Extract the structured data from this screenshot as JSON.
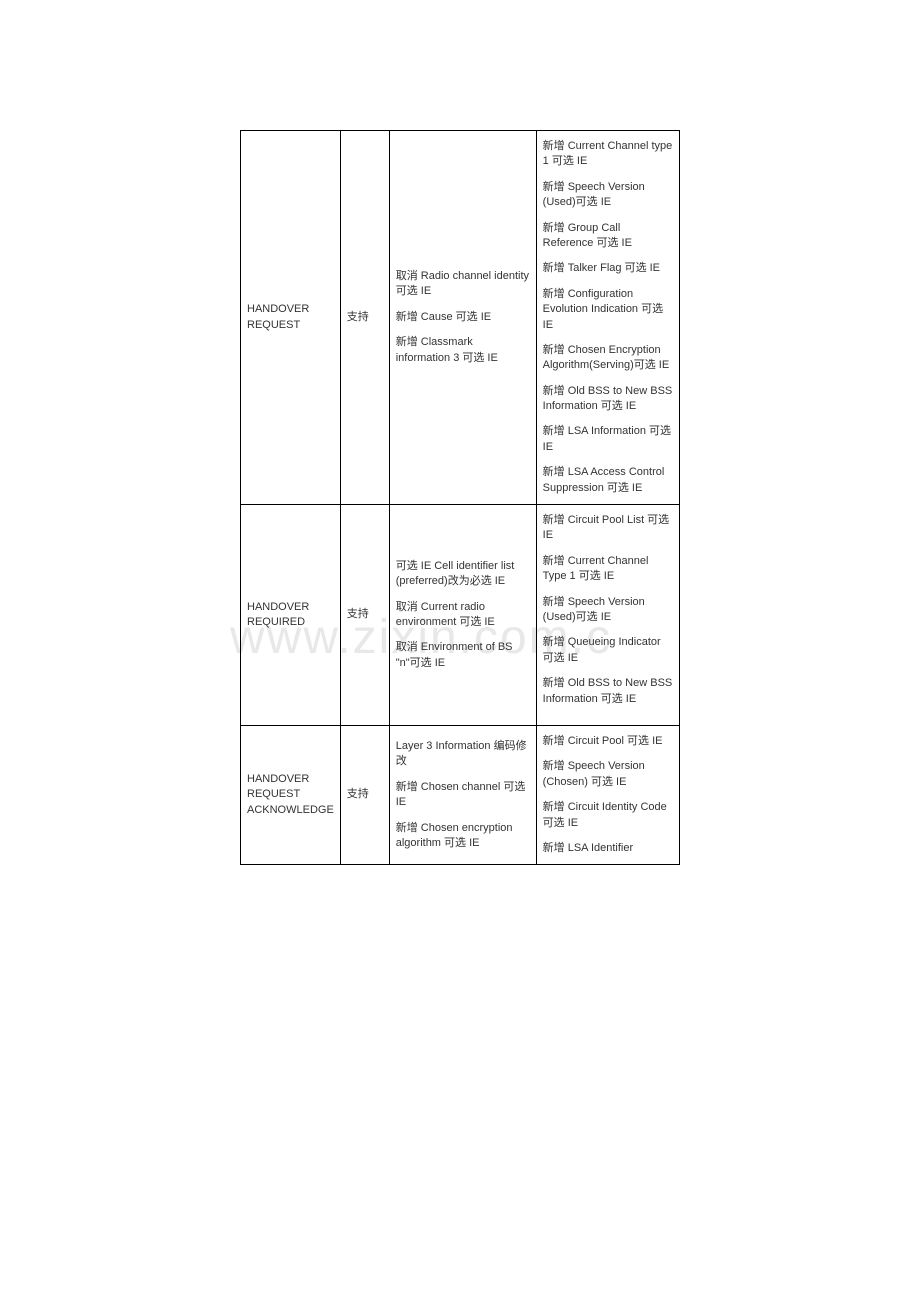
{
  "rows": [
    {
      "name": "HANDOVER REQUEST",
      "support": "支持",
      "col3": [
        "取消 Radio channel identity 可选 IE",
        "新增 Cause 可选 IE",
        "新增 Classmark information 3 可选 IE"
      ],
      "col4": [
        "新增 Current Channel type 1 可选 IE",
        "新增 Speech Version (Used)可选 IE",
        "新增 Group Call Reference 可选 IE",
        "新增 Talker Flag 可选 IE",
        "新增 Configuration Evolution Indication 可选 IE",
        "新增 Chosen Encryption Algorithm(Serving)可选 IE",
        "新增 Old BSS to New BSS Information 可选 IE",
        "新增 LSA Information 可选 IE",
        "新增 LSA Access Control Suppression 可选 IE"
      ]
    },
    {
      "name": "HANDOVER REQUIRED",
      "support": "支持",
      "col3": [
        "可选 IE Cell identifier list (preferred)改为必选 IE",
        "取消 Current radio environment 可选 IE",
        "取消 Environment of BS \"n\"可选 IE"
      ],
      "col4": [
        "新增 Circuit Pool List 可选 IE",
        "新增 Current Channel Type 1 可选 IE",
        "新增 Speech Version (Used)可选 IE",
        "新增 Queueing Indicator 可选 IE",
        "新增 Old BSS to New BSS Information 可选 IE",
        ""
      ]
    },
    {
      "name": "HANDOVER REQUEST ACKNOWLEDGE",
      "support": "支持",
      "col3": [
        "Layer 3 Information 编码修改",
        "新增 Chosen channel 可选 IE",
        "新增 Chosen encryption algorithm 可选 IE"
      ],
      "col4": [
        "新增 Circuit Pool 可选 IE",
        "新增 Speech Version (Chosen) 可选 IE",
        "新增 Circuit Identity Code 可选 IE",
        "新增 LSA Identifier"
      ]
    }
  ]
}
